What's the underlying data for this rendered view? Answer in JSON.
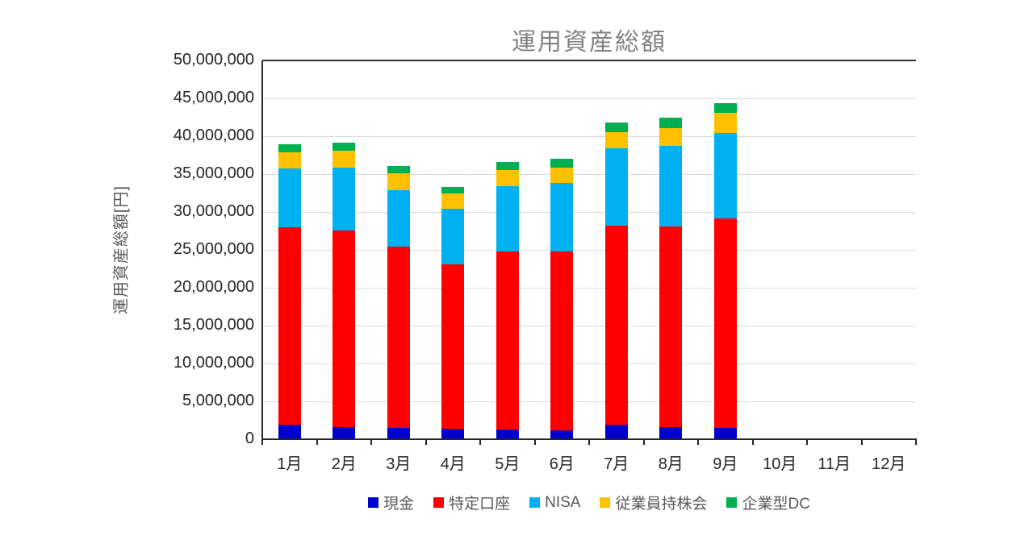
{
  "chart_data": {
    "type": "bar",
    "stacked": true,
    "title": "運用資産総額",
    "ylabel": "運用資産総額[円]",
    "xlabel": "",
    "categories": [
      "1月",
      "2月",
      "3月",
      "4月",
      "5月",
      "6月",
      "7月",
      "8月",
      "9月",
      "10月",
      "11月",
      "12月"
    ],
    "series": [
      {
        "name": "現金",
        "color": "#0000CC",
        "values": [
          1900000,
          1600000,
          1500000,
          1400000,
          1300000,
          1200000,
          1900000,
          1600000,
          1500000,
          0,
          0,
          0
        ]
      },
      {
        "name": "特定口座",
        "color": "#FF0000",
        "values": [
          26100000,
          26000000,
          23900000,
          21700000,
          23500000,
          23600000,
          26300000,
          26500000,
          27700000,
          0,
          0,
          0
        ]
      },
      {
        "name": "NISA",
        "color": "#00B0F0",
        "values": [
          7700000,
          8200000,
          7500000,
          7300000,
          8600000,
          9000000,
          10200000,
          10600000,
          11200000,
          0,
          0,
          0
        ]
      },
      {
        "name": "従業員持株会",
        "color": "#FFC000",
        "values": [
          2200000,
          2300000,
          2200000,
          2000000,
          2100000,
          2000000,
          2100000,
          2400000,
          2700000,
          0,
          0,
          0
        ]
      },
      {
        "name": "企業型DC",
        "color": "#00B050",
        "values": [
          1000000,
          1000000,
          1000000,
          900000,
          1100000,
          1200000,
          1300000,
          1400000,
          1300000,
          0,
          0,
          0
        ]
      }
    ],
    "ylim": [
      0,
      50000000
    ],
    "ytick_step": 5000000,
    "ytick_labels": [
      "0",
      "5,000,000",
      "10,000,000",
      "15,000,000",
      "20,000,000",
      "25,000,000",
      "30,000,000",
      "35,000,000",
      "40,000,000",
      "45,000,000",
      "50,000,000"
    ],
    "grid": true,
    "legend_position": "bottom"
  },
  "style": {
    "grid_color": "#d9d9d9",
    "axis_color": "#262626",
    "title_color": "#808080",
    "tick_label_color": "#262626",
    "legend_text_color": "#595959"
  }
}
